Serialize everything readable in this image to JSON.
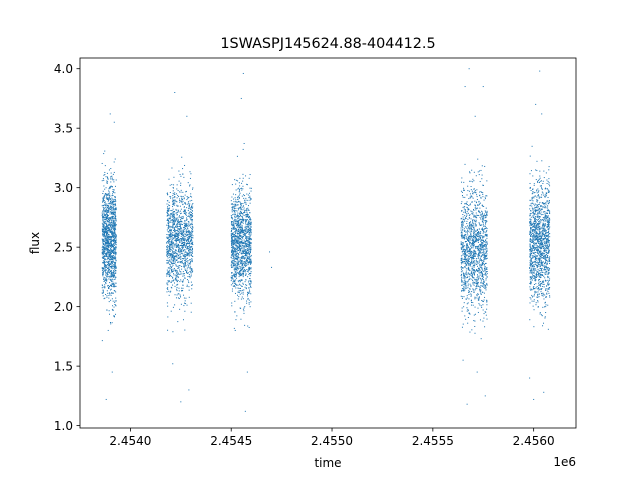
{
  "chart_data": {
    "type": "scatter",
    "title": "1SWASPJ145624.88-404412.5",
    "xlabel": "time",
    "ylabel": "flux",
    "x_offset_label": "1e6",
    "xlim": [
      2.45375,
      2.45621
    ],
    "ylim": [
      0.98,
      4.09
    ],
    "xticks": [
      2.454,
      2.4545,
      2.455,
      2.4555,
      2.456
    ],
    "xtick_labels": [
      "2.4540",
      "2.4545",
      "2.4550",
      "2.4555",
      "2.4560"
    ],
    "yticks": [
      1.0,
      1.5,
      2.0,
      2.5,
      3.0,
      3.5,
      4.0
    ],
    "ytick_labels": [
      "1.0",
      "1.5",
      "2.0",
      "2.5",
      "3.0",
      "3.5",
      "4.0"
    ],
    "grid": false,
    "marker_color": "#1f77b4",
    "clusters": [
      {
        "x_range": [
          2.45386,
          2.45393
        ],
        "y_center": 2.55,
        "y_spread": 0.32
      },
      {
        "x_range": [
          2.45418,
          2.45431
        ],
        "y_center": 2.55,
        "y_spread": 0.3
      },
      {
        "x_range": [
          2.4545,
          2.4546
        ],
        "y_center": 2.52,
        "y_spread": 0.3
      },
      {
        "x_range": [
          2.45564,
          2.45577
        ],
        "y_center": 2.48,
        "y_spread": 0.34
      },
      {
        "x_range": [
          2.45598,
          2.45608
        ],
        "y_center": 2.53,
        "y_spread": 0.33
      }
    ],
    "points": [
      [
        2.45388,
        1.22
      ],
      [
        2.45391,
        1.45
      ],
      [
        2.45389,
        1.8
      ],
      [
        2.45392,
        3.55
      ],
      [
        2.4539,
        3.62
      ],
      [
        2.45422,
        3.8
      ],
      [
        2.45428,
        3.6
      ],
      [
        2.45425,
        1.2
      ],
      [
        2.45429,
        1.3
      ],
      [
        2.45421,
        1.52
      ],
      [
        2.45456,
        3.96
      ],
      [
        2.45455,
        3.75
      ],
      [
        2.45457,
        1.12
      ],
      [
        2.45458,
        1.45
      ],
      [
        2.45452,
        1.8
      ],
      [
        2.45469,
        2.46
      ],
      [
        2.4547,
        2.33
      ],
      [
        2.45568,
        4.0
      ],
      [
        2.45566,
        3.85
      ],
      [
        2.45575,
        3.85
      ],
      [
        2.45571,
        3.6
      ],
      [
        2.45567,
        1.18
      ],
      [
        2.45576,
        1.25
      ],
      [
        2.45572,
        1.45
      ],
      [
        2.45565,
        1.55
      ],
      [
        2.45603,
        3.98
      ],
      [
        2.45601,
        3.7
      ],
      [
        2.45604,
        3.62
      ],
      [
        2.456,
        1.22
      ],
      [
        2.45605,
        1.28
      ],
      [
        2.45598,
        1.4
      ]
    ]
  }
}
